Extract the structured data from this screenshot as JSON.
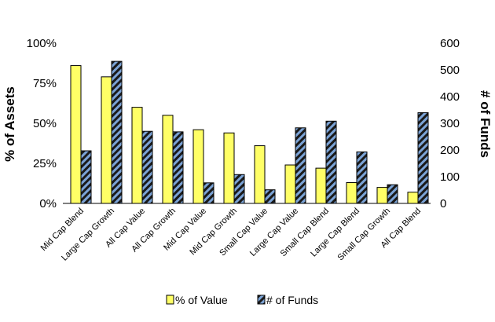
{
  "chart_data": {
    "type": "bar",
    "categories": [
      "Mid Cap Blend",
      "Large Cap Growth",
      "All Cap Value",
      "All Cap Growth",
      "Mid Cap Value",
      "Mid Cap Growth",
      "Small Cap Value",
      "Large Cap Value",
      "Small Cap Blend",
      "Large Cap Blend",
      "Small Cap Growth",
      "All Cap Blend"
    ],
    "series": [
      {
        "name": "% of Value",
        "axis": "left",
        "color": "#FFFF66",
        "pattern": "solid",
        "values": [
          86,
          79,
          60,
          55,
          46,
          44,
          36,
          24,
          22,
          13,
          10,
          7
        ]
      },
      {
        "name": "# of Funds",
        "axis": "right",
        "color": "#7BA3D6",
        "pattern": "diagonal-stripes-black",
        "values": [
          197,
          532,
          270,
          268,
          77,
          108,
          51,
          283,
          308,
          193,
          70,
          340
        ]
      }
    ],
    "ylabel": "% of Assets",
    "ylabel_right": "# of Funds",
    "ylim": [
      0,
      100
    ],
    "ylim_right": [
      0,
      600
    ],
    "yticks": [
      "0%",
      "25%",
      "50%",
      "75%",
      "100%"
    ],
    "yticks_right": [
      "0",
      "100",
      "200",
      "300",
      "400",
      "500",
      "600"
    ],
    "grid": false,
    "legend_position": "bottom"
  }
}
